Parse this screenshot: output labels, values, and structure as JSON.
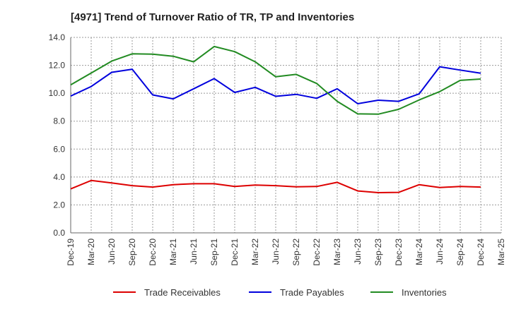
{
  "chart_data": {
    "type": "line",
    "title": "[4971]  Trend of Turnover Ratio of TR, TP and Inventories",
    "xlabel": "",
    "ylabel": "",
    "ylim": [
      0,
      14
    ],
    "yticks": [
      "0.0",
      "2.0",
      "4.0",
      "6.0",
      "8.0",
      "10.0",
      "12.0",
      "14.0"
    ],
    "x_ticks": [
      "Dec-19",
      "Mar-20",
      "Jun-20",
      "Sep-20",
      "Dec-20",
      "Mar-21",
      "Jun-21",
      "Sep-21",
      "Dec-21",
      "Mar-22",
      "Jun-22",
      "Sep-22",
      "Dec-22",
      "Mar-23",
      "Jun-23",
      "Sep-23",
      "Dec-23",
      "Mar-24",
      "Jun-24",
      "Sep-24",
      "Dec-24",
      "Mar-25"
    ],
    "x": [
      "Dec-19",
      "Mar-20",
      "Jun-20",
      "Sep-20",
      "Dec-20",
      "Mar-21",
      "Jun-21",
      "Sep-21",
      "Dec-21",
      "Mar-22",
      "Jun-22",
      "Sep-22",
      "Dec-22",
      "Mar-23",
      "Jun-23",
      "Sep-23",
      "Dec-23",
      "Mar-24",
      "Jun-24",
      "Sep-24",
      "Dec-24"
    ],
    "grid": true,
    "legend_position": "bottom",
    "series": [
      {
        "name": "Trade Receivables",
        "color": "#dd0000",
        "values": [
          3.15,
          3.75,
          3.58,
          3.38,
          3.28,
          3.45,
          3.52,
          3.52,
          3.32,
          3.42,
          3.38,
          3.3,
          3.32,
          3.62,
          3.0,
          2.88,
          2.9,
          3.45,
          3.25,
          3.32,
          3.28
        ]
      },
      {
        "name": "Trade Payables",
        "color": "#0000dd",
        "values": [
          9.8,
          10.48,
          11.5,
          11.72,
          9.88,
          9.6,
          10.32,
          11.05,
          10.06,
          10.42,
          9.78,
          9.92,
          9.64,
          10.32,
          9.25,
          9.5,
          9.42,
          9.96,
          11.9,
          11.66,
          11.44
        ]
      },
      {
        "name": "Inventories",
        "color": "#228b22",
        "values": [
          10.6,
          11.45,
          12.3,
          12.82,
          12.8,
          12.65,
          12.25,
          13.35,
          12.98,
          12.25,
          11.18,
          11.35,
          10.7,
          9.42,
          8.52,
          8.5,
          8.85,
          9.52,
          10.12,
          10.92,
          11.02
        ]
      }
    ]
  }
}
